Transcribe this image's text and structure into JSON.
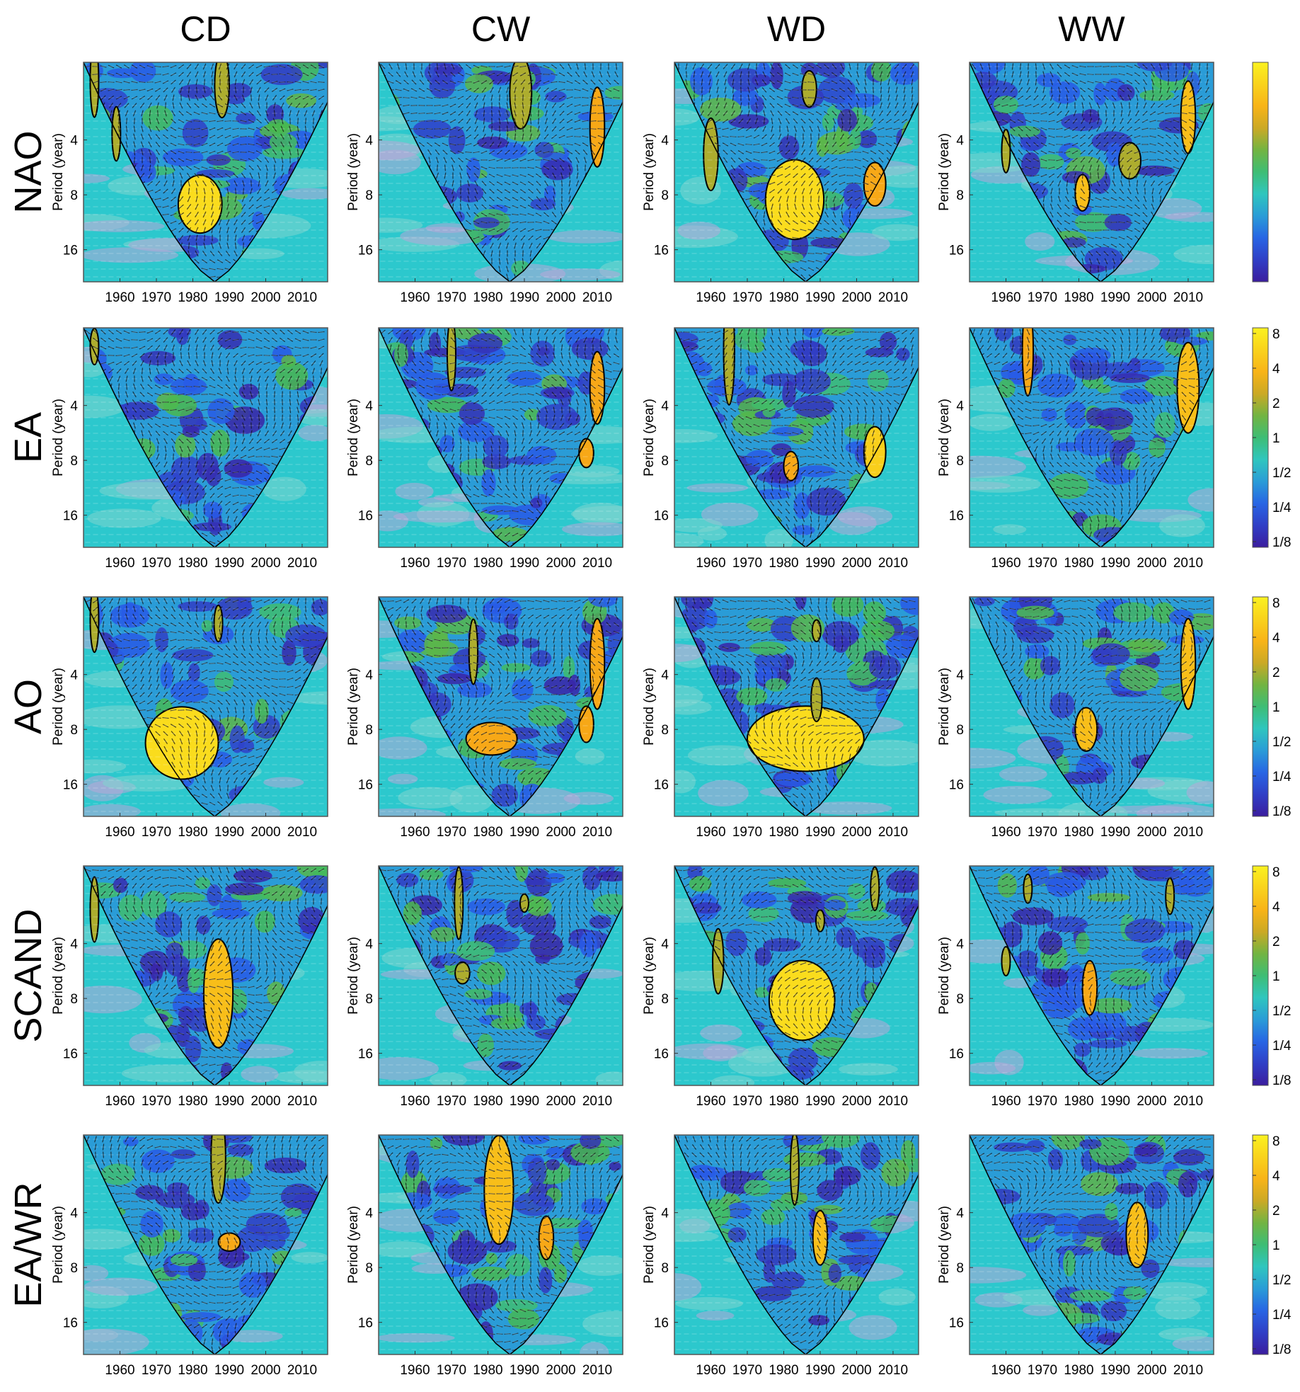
{
  "chart_data": {
    "type": "heatmap",
    "subtype": "wavelet-coherence-grid",
    "columns": [
      "CD",
      "CW",
      "WD",
      "WW"
    ],
    "rows": [
      "NAO",
      "EA",
      "AO",
      "SCAND",
      "EA/WR"
    ],
    "ylabel": "Period (year)",
    "y_ticks": [
      "4",
      "8",
      "16"
    ],
    "y_tick_values": [
      4,
      8,
      16
    ],
    "ylim": [
      1.5,
      24
    ],
    "x_ticks": [
      "1960",
      "1970",
      "1980",
      "1990",
      "2000",
      "2010"
    ],
    "x_tick_values": [
      1960,
      1970,
      1980,
      1990,
      2000,
      2010
    ],
    "xlim": [
      1950,
      2017
    ],
    "colorbar_ticks": [
      "8",
      "4",
      "2",
      "1",
      "1/2",
      "1/4",
      "1/8"
    ],
    "colorbar_values": [
      8,
      4,
      2,
      1,
      0.5,
      0.25,
      0.125
    ],
    "colors": {
      "low": "#3b1d9e",
      "mid_low": "#1f6fe0",
      "mid": "#2ec7c9",
      "mid_high": "#45b43c",
      "high": "#f7a416",
      "top": "#fbf220",
      "outside_coi": "#b8a8d8",
      "arrow": "#111111"
    },
    "significant_regions": [
      {
        "row": "NAO",
        "col": "CD",
        "regions": [
          {
            "year": 1982,
            "period": 9.0,
            "dyear": 6,
            "dperiod": 0.16,
            "power": 6
          },
          {
            "year": 1988,
            "period": 2.0,
            "dyear": 2,
            "dperiod": 0.18,
            "power": 2
          },
          {
            "year": 1953,
            "period": 1.9,
            "dyear": 1,
            "dperiod": 0.2,
            "power": 2
          },
          {
            "year": 1959,
            "period": 3.7,
            "dyear": 1,
            "dperiod": 0.15,
            "power": 2
          }
        ]
      },
      {
        "row": "NAO",
        "col": "CW",
        "regions": [
          {
            "year": 1989,
            "period": 2.2,
            "dyear": 3,
            "dperiod": 0.2,
            "power": 2
          },
          {
            "year": 2010,
            "period": 3.4,
            "dyear": 2,
            "dperiod": 0.22,
            "power": 3
          }
        ]
      },
      {
        "row": "NAO",
        "col": "WD",
        "regions": [
          {
            "year": 1983,
            "period": 8.5,
            "dyear": 8,
            "dperiod": 0.22,
            "power": 6
          },
          {
            "year": 1960,
            "period": 4.8,
            "dyear": 2,
            "dperiod": 0.2,
            "power": 2
          },
          {
            "year": 1987,
            "period": 2.1,
            "dyear": 2,
            "dperiod": 0.1,
            "power": 2
          },
          {
            "year": 2005,
            "period": 7.0,
            "dyear": 3,
            "dperiod": 0.12,
            "power": 3
          }
        ]
      },
      {
        "row": "NAO",
        "col": "WW",
        "regions": [
          {
            "year": 2010,
            "period": 3.0,
            "dyear": 2,
            "dperiod": 0.2,
            "power": 4
          },
          {
            "year": 1994,
            "period": 5.2,
            "dyear": 3,
            "dperiod": 0.1,
            "power": 2
          },
          {
            "year": 1981,
            "period": 7.8,
            "dyear": 2,
            "dperiod": 0.1,
            "power": 4
          },
          {
            "year": 1960,
            "period": 4.6,
            "dyear": 1,
            "dperiod": 0.12,
            "power": 2
          }
        ]
      },
      {
        "row": "EA",
        "col": "CD",
        "regions": [
          {
            "year": 1953,
            "period": 1.9,
            "dyear": 1,
            "dperiod": 0.1,
            "power": 2
          }
        ]
      },
      {
        "row": "EA",
        "col": "CW",
        "regions": [
          {
            "year": 2010,
            "period": 3.2,
            "dyear": 2,
            "dperiod": 0.2,
            "power": 3
          },
          {
            "year": 2007,
            "period": 7.3,
            "dyear": 2,
            "dperiod": 0.08,
            "power": 3
          },
          {
            "year": 1970,
            "period": 2.1,
            "dyear": 0.6,
            "dperiod": 0.2,
            "power": 2
          }
        ]
      },
      {
        "row": "EA",
        "col": "WD",
        "regions": [
          {
            "year": 2005,
            "period": 7.2,
            "dyear": 3,
            "dperiod": 0.14,
            "power": 5
          },
          {
            "year": 1982,
            "period": 8.6,
            "dyear": 2,
            "dperiod": 0.08,
            "power": 3
          },
          {
            "year": 1965,
            "period": 2.0,
            "dyear": 1.5,
            "dperiod": 0.3,
            "power": 2
          }
        ]
      },
      {
        "row": "EA",
        "col": "WW",
        "regions": [
          {
            "year": 2010,
            "period": 3.2,
            "dyear": 3,
            "dperiod": 0.25,
            "power": 4
          },
          {
            "year": 1966,
            "period": 2.0,
            "dyear": 1.5,
            "dperiod": 0.25,
            "power": 3
          }
        ]
      },
      {
        "row": "AO",
        "col": "CD",
        "regions": [
          {
            "year": 1977,
            "period": 9.5,
            "dyear": 10,
            "dperiod": 0.2,
            "power": 6
          },
          {
            "year": 1987,
            "period": 2.1,
            "dyear": 0.5,
            "dperiod": 0.1,
            "power": 2
          },
          {
            "year": 1953,
            "period": 2.0,
            "dyear": 1,
            "dperiod": 0.18,
            "power": 2
          }
        ]
      },
      {
        "row": "AO",
        "col": "CW",
        "regions": [
          {
            "year": 1981,
            "period": 9.0,
            "dyear": 7,
            "dperiod": 0.09,
            "power": 3
          },
          {
            "year": 2010,
            "period": 3.5,
            "dyear": 2,
            "dperiod": 0.25,
            "power": 3
          },
          {
            "year": 2007,
            "period": 7.5,
            "dyear": 2,
            "dperiod": 0.1,
            "power": 3
          },
          {
            "year": 1976,
            "period": 3.0,
            "dyear": 1.2,
            "dperiod": 0.18,
            "power": 2
          }
        ]
      },
      {
        "row": "AO",
        "col": "WD",
        "regions": [
          {
            "year": 1986,
            "period": 9.0,
            "dyear": 16,
            "dperiod": 0.18,
            "power": 6
          },
          {
            "year": 1989,
            "period": 5.5,
            "dyear": 1.5,
            "dperiod": 0.12,
            "power": 2
          },
          {
            "year": 1989,
            "period": 2.3,
            "dyear": 0.5,
            "dperiod": 0.06,
            "power": 2
          }
        ]
      },
      {
        "row": "AO",
        "col": "WW",
        "regions": [
          {
            "year": 2010,
            "period": 3.5,
            "dyear": 2,
            "dperiod": 0.25,
            "power": 4
          },
          {
            "year": 1982,
            "period": 8.0,
            "dyear": 3,
            "dperiod": 0.12,
            "power": 4
          }
        ]
      },
      {
        "row": "SCAND",
        "col": "CD",
        "regions": [
          {
            "year": 1987,
            "period": 7.5,
            "dyear": 4,
            "dperiod": 0.3,
            "power": 4
          },
          {
            "year": 1953,
            "period": 2.6,
            "dyear": 1,
            "dperiod": 0.18,
            "power": 2
          }
        ]
      },
      {
        "row": "SCAND",
        "col": "CW",
        "regions": [
          {
            "year": 1973,
            "period": 5.8,
            "dyear": 2,
            "dperiod": 0.06,
            "power": 2
          },
          {
            "year": 1972,
            "period": 2.4,
            "dyear": 0.6,
            "dperiod": 0.2,
            "power": 2
          },
          {
            "year": 1990,
            "period": 2.4,
            "dyear": 0.5,
            "dperiod": 0.05,
            "power": 2
          }
        ]
      },
      {
        "row": "SCAND",
        "col": "WD",
        "regions": [
          {
            "year": 1985,
            "period": 8.2,
            "dyear": 9,
            "dperiod": 0.22,
            "power": 6
          },
          {
            "year": 1962,
            "period": 5.0,
            "dyear": 1.5,
            "dperiod": 0.18,
            "power": 2
          },
          {
            "year": 2005,
            "period": 2.0,
            "dyear": 1,
            "dperiod": 0.12,
            "power": 2
          },
          {
            "year": 1990,
            "period": 3.0,
            "dyear": 0.6,
            "dperiod": 0.06,
            "power": 2
          }
        ]
      },
      {
        "row": "SCAND",
        "col": "WW",
        "regions": [
          {
            "year": 1983,
            "period": 7.0,
            "dyear": 2,
            "dperiod": 0.15,
            "power": 3
          },
          {
            "year": 1960,
            "period": 5.0,
            "dyear": 0.6,
            "dperiod": 0.08,
            "power": 2
          },
          {
            "year": 1966,
            "period": 2.0,
            "dyear": 0.8,
            "dperiod": 0.08,
            "power": 2
          },
          {
            "year": 2005,
            "period": 2.2,
            "dyear": 0.8,
            "dperiod": 0.1,
            "power": 2
          }
        ]
      },
      {
        "row": "EA/WR",
        "col": "CD",
        "regions": [
          {
            "year": 1990,
            "period": 5.8,
            "dyear": 3,
            "dperiod": 0.05,
            "power": 3
          },
          {
            "year": 1987,
            "period": 2.0,
            "dyear": 2,
            "dperiod": 0.25,
            "power": 2
          }
        ]
      },
      {
        "row": "EA/WR",
        "col": "CW",
        "regions": [
          {
            "year": 1983,
            "period": 3.0,
            "dyear": 4,
            "dperiod": 0.3,
            "power": 4
          },
          {
            "year": 1996,
            "period": 5.5,
            "dyear": 2,
            "dperiod": 0.12,
            "power": 3
          }
        ]
      },
      {
        "row": "EA/WR",
        "col": "WD",
        "regions": [
          {
            "year": 1990,
            "period": 5.5,
            "dyear": 2,
            "dperiod": 0.15,
            "power": 4
          },
          {
            "year": 1983,
            "period": 2.3,
            "dyear": 0.6,
            "dperiod": 0.2,
            "power": 2
          }
        ]
      },
      {
        "row": "EA/WR",
        "col": "WW",
        "regions": [
          {
            "year": 1996,
            "period": 5.3,
            "dyear": 3,
            "dperiod": 0.18,
            "power": 4
          }
        ]
      }
    ]
  }
}
